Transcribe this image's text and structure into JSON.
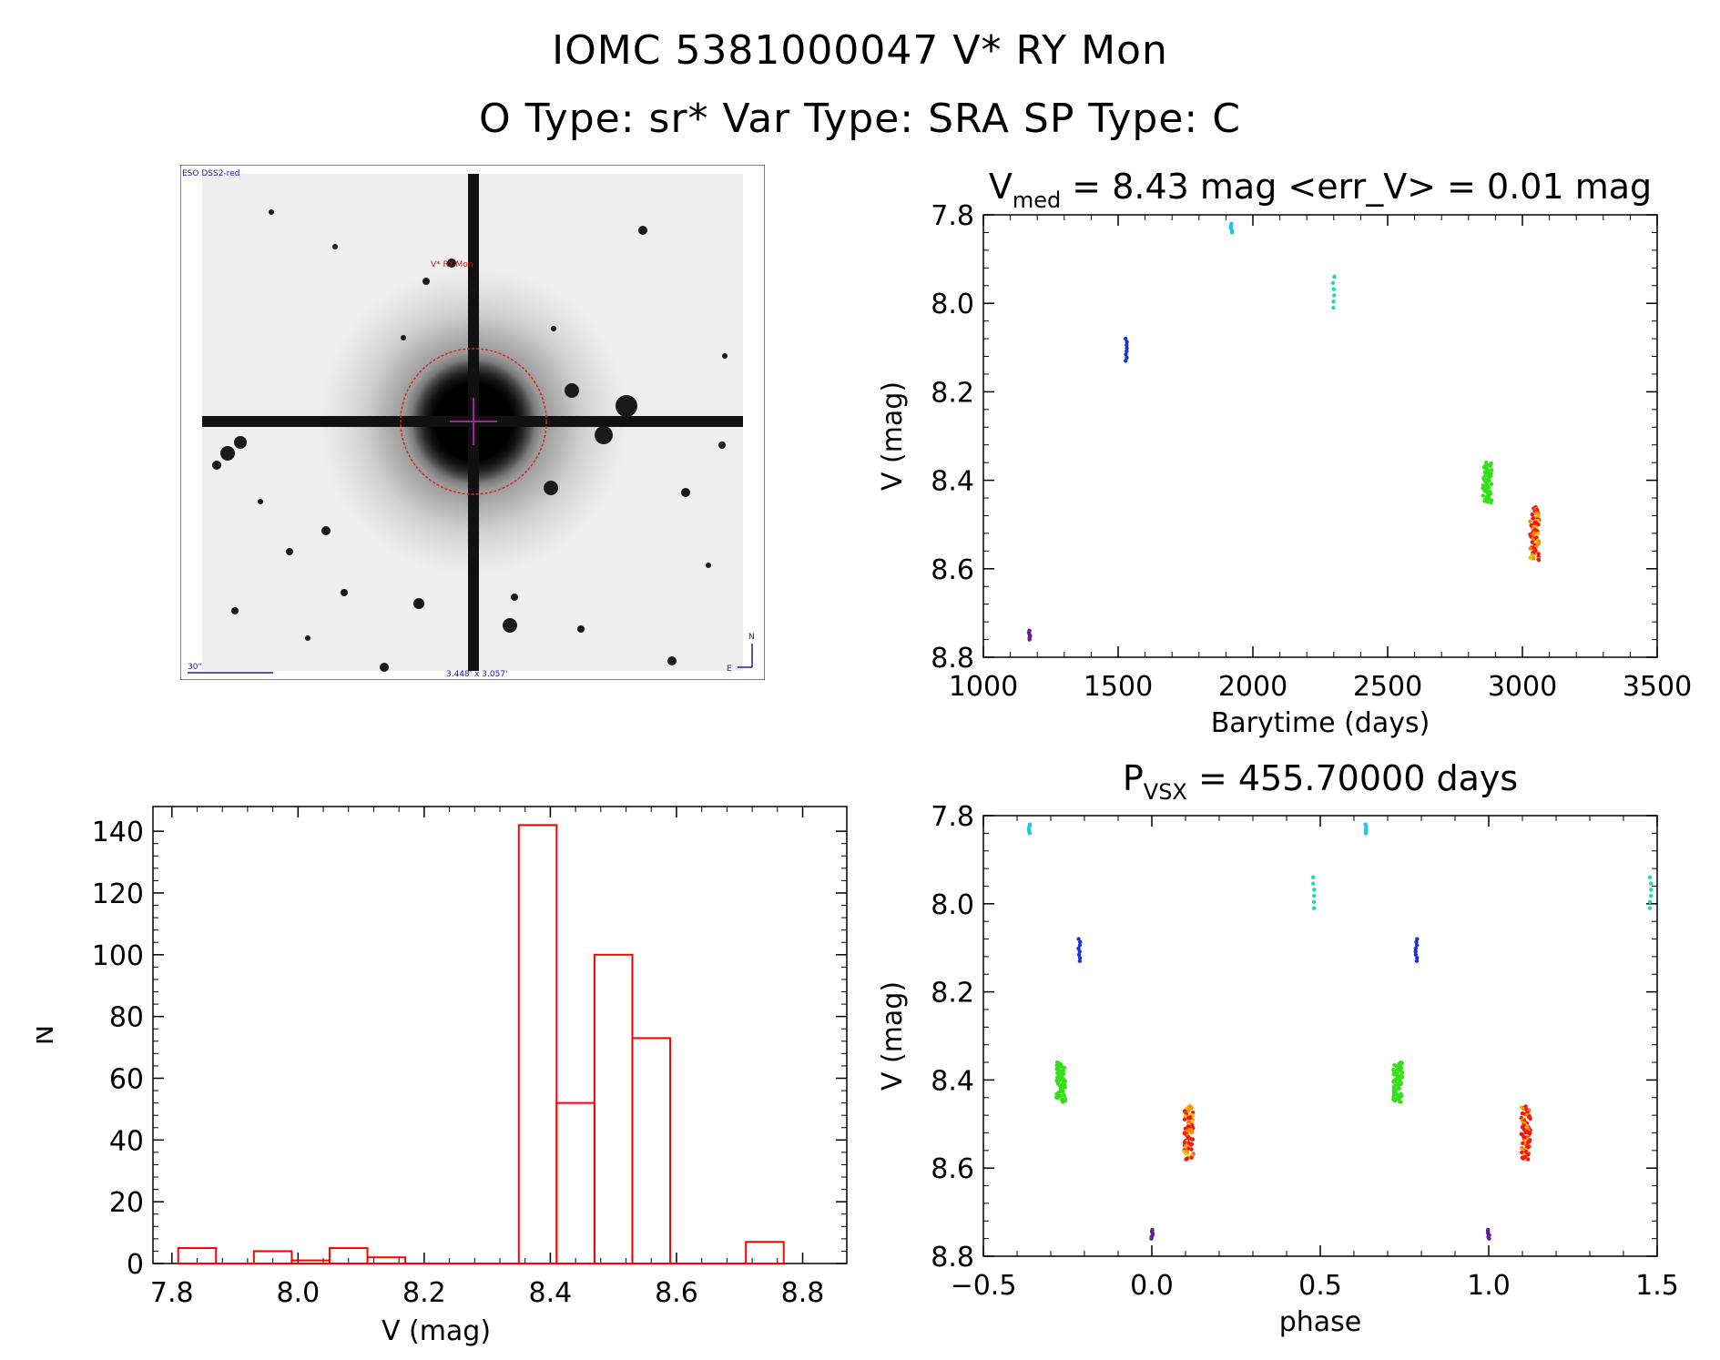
{
  "header": {
    "line1": "IOMC 5381000047    V* RY Mon",
    "line2": "O Type: sr*  Var Type: SRA  SP Type: C"
  },
  "finder_chart": {
    "survey_label": "ESO DSS2-red",
    "target_label": "V* RY Mon",
    "scale_label": "30\"",
    "fov_label": "3.448' x 3.057'",
    "north_label": "N",
    "east_label": "E"
  },
  "chart_data": [
    {
      "id": "light-curve",
      "type": "scatter",
      "title_parts": [
        "V",
        "med",
        " = 8.43 mag <err_V> = 0.01 mag"
      ],
      "xlabel": "Barytime (days)",
      "ylabel": "V (mag)",
      "xlim": [
        1000,
        3500
      ],
      "ylim": [
        8.8,
        7.8
      ],
      "y_inverted": true,
      "xticks": [
        1000,
        1500,
        2000,
        2500,
        3000,
        3500
      ],
      "yticks": [
        7.8,
        8.0,
        8.2,
        8.4,
        8.6,
        8.8
      ],
      "grid": false,
      "groups": [
        {
          "x": 1170,
          "y_min": 8.74,
          "y_max": 8.76,
          "n": 6,
          "color": "#6a1b9a"
        },
        {
          "x": 1530,
          "y_min": 8.08,
          "y_max": 8.13,
          "n": 8,
          "color": "#1e2fd6"
        },
        {
          "x": 1920,
          "y_min": 7.82,
          "y_max": 7.84,
          "n": 5,
          "color": "#1ac8e6"
        },
        {
          "x": 2300,
          "y_min": 7.94,
          "y_max": 8.01,
          "n": 6,
          "color": "#17e0a8"
        },
        {
          "x": 2870,
          "y_min": 8.36,
          "y_max": 8.45,
          "n": 60,
          "color": "#35e01a"
        },
        {
          "x": 3045,
          "y_min": 8.46,
          "y_max": 8.58,
          "n": 70,
          "color": "#f23a1a"
        }
      ]
    },
    {
      "id": "phased-light-curve",
      "type": "scatter",
      "title_parts": [
        "P",
        "VSX",
        " = 455.70000 days"
      ],
      "xlabel": "phase",
      "ylabel": "V (mag)",
      "xlim": [
        -0.5,
        1.5
      ],
      "ylim": [
        8.8,
        7.8
      ],
      "y_inverted": true,
      "xticks": [
        -0.5,
        0.0,
        0.5,
        1.0,
        1.5
      ],
      "xtick_labels": [
        "−0.5",
        "0.0",
        "0.5",
        "1.0",
        "1.5"
      ],
      "yticks": [
        7.8,
        8.0,
        8.2,
        8.4,
        8.6,
        8.8
      ],
      "grid": false,
      "groups": [
        {
          "x": -0.365,
          "y_min": 7.82,
          "y_max": 7.84,
          "n": 5,
          "color": "#1ac8e6"
        },
        {
          "x": 0.635,
          "y_min": 7.82,
          "y_max": 7.84,
          "n": 5,
          "color": "#1ac8e6"
        },
        {
          "x": -0.215,
          "y_min": 8.08,
          "y_max": 8.13,
          "n": 8,
          "color": "#1e2fd6"
        },
        {
          "x": 0.785,
          "y_min": 8.08,
          "y_max": 8.13,
          "n": 8,
          "color": "#1e2fd6"
        },
        {
          "x": 0.48,
          "y_min": 7.94,
          "y_max": 8.01,
          "n": 6,
          "color": "#17e0a8"
        },
        {
          "x": 1.48,
          "y_min": 7.94,
          "y_max": 8.01,
          "n": 6,
          "color": "#17e0a8"
        },
        {
          "x": -0.27,
          "y_min": 8.36,
          "y_max": 8.45,
          "n": 60,
          "color": "#35e01a"
        },
        {
          "x": 0.73,
          "y_min": 8.36,
          "y_max": 8.45,
          "n": 60,
          "color": "#35e01a"
        },
        {
          "x": 0.11,
          "y_min": 8.46,
          "y_max": 8.58,
          "n": 70,
          "color": "#f23a1a"
        },
        {
          "x": 1.11,
          "y_min": 8.46,
          "y_max": 8.58,
          "n": 70,
          "color": "#f23a1a"
        },
        {
          "x": 0.0,
          "y_min": 8.74,
          "y_max": 8.76,
          "n": 6,
          "color": "#6a1b9a"
        },
        {
          "x": 1.0,
          "y_min": 8.74,
          "y_max": 8.76,
          "n": 6,
          "color": "#6a1b9a"
        }
      ]
    },
    {
      "id": "histogram",
      "type": "bar",
      "xlabel": "V (mag)",
      "ylabel": "N",
      "xlim": [
        7.77,
        8.87
      ],
      "ylim": [
        0,
        148
      ],
      "xticks": [
        7.8,
        8.0,
        8.2,
        8.4,
        8.6,
        8.8
      ],
      "yticks": [
        0,
        20,
        40,
        60,
        80,
        100,
        120,
        140
      ],
      "bar_color": "#ff0000",
      "bins": [
        {
          "x0": 7.81,
          "x1": 7.87,
          "value": 5
        },
        {
          "x0": 7.93,
          "x1": 7.99,
          "value": 4
        },
        {
          "x0": 7.99,
          "x1": 8.05,
          "value": 1
        },
        {
          "x0": 8.05,
          "x1": 8.11,
          "value": 5
        },
        {
          "x0": 8.11,
          "x1": 8.17,
          "value": 2
        },
        {
          "x0": 8.35,
          "x1": 8.41,
          "value": 142
        },
        {
          "x0": 8.41,
          "x1": 8.47,
          "value": 52
        },
        {
          "x0": 8.47,
          "x1": 8.53,
          "value": 100
        },
        {
          "x0": 8.53,
          "x1": 8.59,
          "value": 73
        },
        {
          "x0": 8.71,
          "x1": 8.77,
          "value": 7
        }
      ]
    }
  ]
}
